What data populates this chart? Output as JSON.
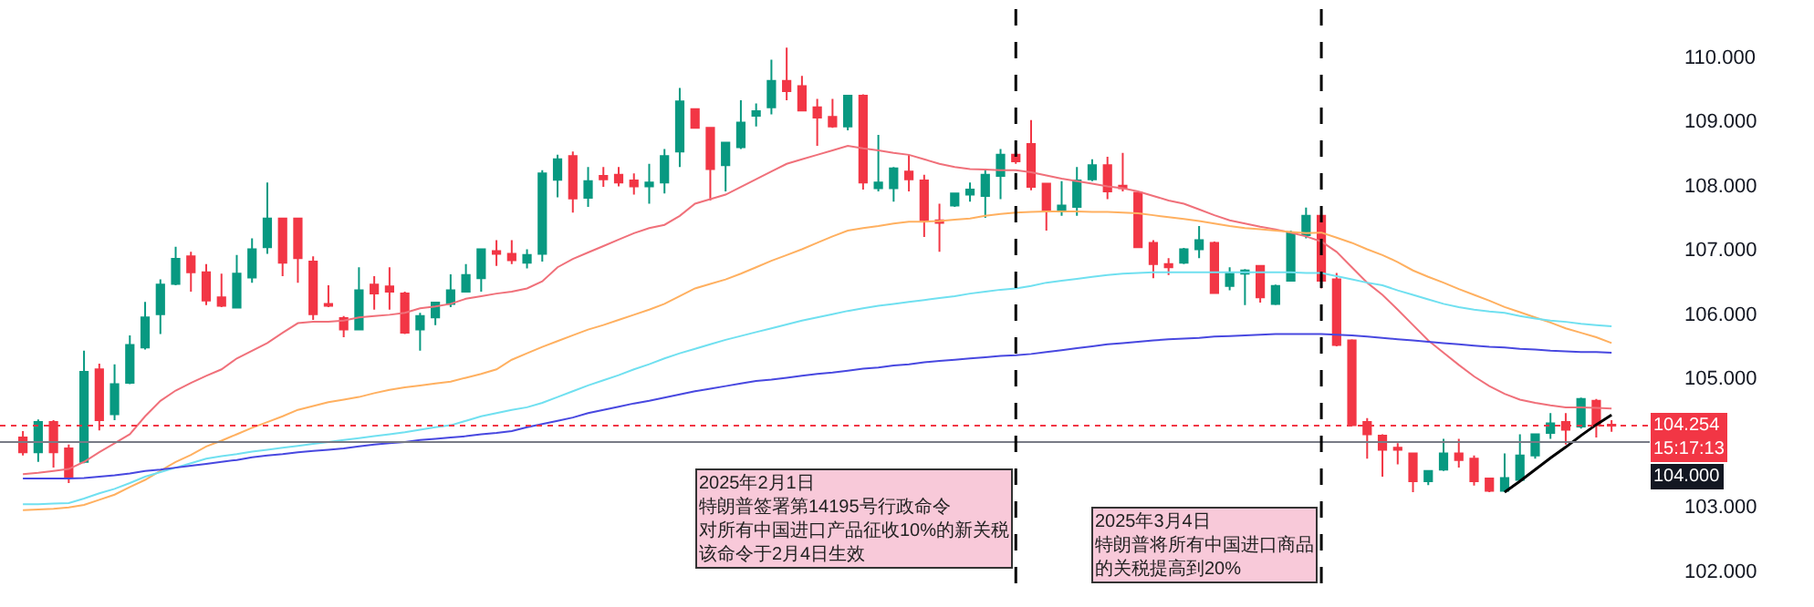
{
  "chart_data": {
    "type": "candlestick",
    "categories": [
      null,
      null,
      null,
      null,
      null,
      null,
      null,
      null,
      null,
      null,
      null,
      null,
      null,
      null,
      null,
      null,
      null,
      null,
      null,
      null,
      null,
      null,
      null,
      null,
      null,
      null,
      null,
      null,
      null,
      null,
      null,
      null,
      null,
      null,
      null,
      null,
      null,
      null,
      null,
      null,
      null,
      null,
      null,
      null,
      null,
      null,
      null,
      null,
      null,
      null,
      null,
      null,
      null,
      null,
      null,
      null,
      null,
      null,
      null,
      null,
      null,
      null,
      null,
      null,
      null,
      null,
      null,
      null,
      null,
      null,
      null,
      null,
      null,
      null,
      null,
      null,
      null,
      null,
      null,
      null,
      null,
      null,
      null,
      null,
      null,
      null,
      null,
      null,
      null,
      null,
      null,
      null,
      null,
      null,
      null,
      null,
      null,
      null,
      null,
      null,
      null,
      null,
      null,
      null,
      null
    ],
    "ohlc": [
      [
        104.07,
        104.17,
        103.79,
        103.84
      ],
      [
        103.84,
        104.35,
        103.69,
        104.31
      ],
      [
        104.31,
        104.34,
        103.6,
        103.84
      ],
      [
        103.9,
        103.96,
        103.36,
        103.46
      ],
      [
        103.69,
        105.42,
        103.67,
        105.09
      ],
      [
        105.13,
        105.22,
        104.18,
        104.34
      ],
      [
        104.43,
        105.21,
        104.34,
        104.9
      ],
      [
        104.92,
        105.66,
        104.9,
        105.51
      ],
      [
        105.47,
        106.18,
        105.44,
        105.94
      ],
      [
        105.99,
        106.53,
        105.68,
        106.45
      ],
      [
        106.46,
        107.04,
        106.44,
        106.85
      ],
      [
        106.89,
        106.96,
        106.34,
        106.64
      ],
      [
        106.64,
        106.77,
        106.13,
        106.2
      ],
      [
        106.25,
        106.62,
        106.1,
        106.12
      ],
      [
        106.09,
        106.91,
        106.09,
        106.62
      ],
      [
        106.56,
        107.17,
        106.48,
        107.0
      ],
      [
        107.03,
        108.04,
        106.93,
        107.48
      ],
      [
        107.48,
        107.48,
        106.58,
        106.79
      ],
      [
        107.48,
        107.48,
        106.48,
        106.86
      ],
      [
        106.81,
        106.89,
        105.9,
        105.99
      ],
      [
        106.15,
        106.44,
        106.1,
        106.12
      ],
      [
        105.93,
        105.96,
        105.63,
        105.75
      ],
      [
        105.75,
        106.72,
        105.75,
        106.36
      ],
      [
        106.45,
        106.58,
        106.06,
        106.31
      ],
      [
        106.42,
        106.72,
        106.06,
        106.34
      ],
      [
        106.31,
        106.34,
        105.68,
        105.7
      ],
      [
        105.75,
        106.01,
        105.42,
        105.96
      ],
      [
        105.94,
        106.17,
        105.82,
        106.17
      ],
      [
        106.15,
        106.61,
        106.1,
        106.36
      ],
      [
        106.34,
        106.77,
        106.34,
        106.6
      ],
      [
        106.55,
        107.0,
        106.34,
        107.0
      ],
      [
        106.97,
        107.14,
        106.74,
        106.93
      ],
      [
        106.93,
        107.14,
        106.77,
        106.83
      ],
      [
        106.79,
        107.0,
        106.7,
        106.91
      ],
      [
        106.93,
        108.23,
        106.81,
        108.18
      ],
      [
        108.08,
        108.47,
        107.81,
        108.4
      ],
      [
        108.45,
        108.52,
        107.57,
        107.79
      ],
      [
        107.8,
        108.28,
        107.66,
        108.06
      ],
      [
        108.14,
        108.28,
        107.97,
        108.09
      ],
      [
        108.16,
        108.28,
        107.98,
        108.04
      ],
      [
        108.07,
        108.18,
        107.85,
        107.98
      ],
      [
        107.98,
        108.33,
        107.71,
        108.04
      ],
      [
        108.04,
        108.56,
        107.87,
        108.45
      ],
      [
        108.52,
        109.51,
        108.28,
        109.3
      ],
      [
        109.18,
        109.18,
        108.89,
        108.89
      ],
      [
        108.89,
        108.89,
        107.76,
        108.25
      ],
      [
        108.31,
        108.66,
        107.9,
        108.66
      ],
      [
        108.59,
        109.32,
        108.56,
        108.97
      ],
      [
        109.08,
        109.27,
        108.91,
        109.15
      ],
      [
        109.21,
        109.95,
        109.1,
        109.62
      ],
      [
        109.62,
        110.14,
        109.32,
        109.46
      ],
      [
        109.54,
        109.7,
        109.16,
        109.16
      ],
      [
        109.21,
        109.34,
        108.61,
        109.05
      ],
      [
        109.06,
        109.34,
        108.89,
        108.91
      ],
      [
        108.91,
        109.39,
        108.85,
        109.39
      ],
      [
        109.39,
        109.41,
        107.93,
        108.04
      ],
      [
        107.95,
        108.78,
        107.9,
        108.04
      ],
      [
        107.95,
        108.28,
        107.74,
        108.26
      ],
      [
        108.21,
        108.47,
        107.9,
        108.09
      ],
      [
        108.07,
        108.16,
        107.19,
        107.45
      ],
      [
        107.45,
        107.71,
        106.96,
        107.41
      ],
      [
        107.68,
        107.87,
        107.66,
        107.87
      ],
      [
        107.85,
        108.04,
        107.74,
        107.93
      ],
      [
        107.83,
        108.25,
        107.49,
        108.16
      ],
      [
        108.14,
        108.56,
        107.78,
        108.47
      ],
      [
        108.47,
        108.52,
        108.33,
        108.37
      ],
      [
        108.64,
        109.01,
        107.92,
        107.97
      ],
      [
        108.02,
        108.02,
        107.29,
        107.6
      ],
      [
        107.59,
        108.06,
        107.52,
        107.68
      ],
      [
        107.66,
        108.28,
        107.52,
        108.07
      ],
      [
        108.09,
        108.4,
        108.06,
        108.31
      ],
      [
        108.31,
        108.44,
        107.78,
        107.9
      ],
      [
        107.99,
        108.5,
        107.9,
        107.95
      ],
      [
        107.88,
        107.88,
        107.03,
        107.03
      ],
      [
        107.1,
        107.14,
        106.55,
        106.77
      ],
      [
        106.77,
        106.86,
        106.6,
        106.72
      ],
      [
        106.79,
        107.02,
        106.77,
        107.0
      ],
      [
        107.0,
        107.36,
        106.86,
        107.14
      ],
      [
        107.1,
        107.12,
        106.32,
        106.32
      ],
      [
        106.43,
        106.72,
        106.36,
        106.62
      ],
      [
        106.62,
        106.69,
        106.13,
        106.67
      ],
      [
        106.74,
        106.74,
        106.17,
        106.25
      ],
      [
        106.15,
        106.45,
        106.13,
        106.43
      ],
      [
        106.51,
        107.29,
        106.51,
        107.26
      ],
      [
        107.22,
        107.65,
        107.17,
        107.52
      ],
      [
        107.52,
        107.52,
        106.39,
        106.51
      ],
      [
        106.53,
        106.63,
        105.49,
        105.51
      ],
      [
        105.58,
        105.6,
        104.26,
        104.26
      ],
      [
        104.31,
        104.37,
        103.74,
        104.12
      ],
      [
        104.1,
        104.12,
        103.46,
        103.88
      ],
      [
        103.91,
        103.98,
        103.65,
        103.88
      ],
      [
        103.82,
        103.82,
        103.22,
        103.39
      ],
      [
        103.39,
        103.55,
        103.33,
        103.55
      ],
      [
        103.57,
        104.05,
        103.55,
        103.82
      ],
      [
        103.82,
        104.05,
        103.6,
        103.72
      ],
      [
        103.74,
        103.79,
        103.32,
        103.39
      ],
      [
        103.43,
        103.43,
        103.22,
        103.24
      ],
      [
        103.24,
        103.82,
        103.22,
        103.44
      ],
      [
        103.41,
        104.12,
        103.39,
        103.79
      ],
      [
        103.79,
        104.12,
        103.74,
        104.12
      ],
      [
        104.14,
        104.45,
        104.05,
        104.29
      ],
      [
        104.31,
        104.45,
        103.96,
        104.19
      ],
      [
        104.24,
        104.69,
        104.21,
        104.67
      ],
      [
        104.64,
        104.67,
        104.07,
        104.26
      ],
      [
        104.27,
        104.34,
        104.16,
        104.254
      ]
    ],
    "series": [
      {
        "type": "line",
        "color": "#f0707a",
        "values": [
          103.5,
          103.52,
          103.55,
          103.58,
          103.69,
          103.84,
          103.98,
          104.12,
          104.4,
          104.64,
          104.8,
          104.92,
          105.03,
          105.13,
          105.3,
          105.42,
          105.54,
          105.7,
          105.85,
          105.87,
          105.87,
          105.89,
          105.94,
          105.96,
          105.98,
          106.01,
          106.08,
          106.11,
          106.15,
          106.23,
          106.27,
          106.31,
          106.34,
          106.39,
          106.5,
          106.72,
          106.85,
          106.95,
          107.05,
          107.15,
          107.25,
          107.33,
          107.38,
          107.52,
          107.71,
          107.78,
          107.85,
          107.97,
          108.09,
          108.21,
          108.33,
          108.4,
          108.47,
          108.54,
          108.61,
          108.57,
          108.54,
          108.5,
          108.47,
          108.4,
          108.33,
          108.28,
          108.25,
          108.24,
          108.23,
          108.23,
          108.2,
          108.15,
          108.1,
          108.06,
          108.02,
          107.98,
          107.95,
          107.9,
          107.83,
          107.76,
          107.71,
          107.62,
          107.53,
          107.45,
          107.4,
          107.35,
          107.31,
          107.26,
          107.2,
          107.12,
          106.96,
          106.72,
          106.48,
          106.29,
          106.06,
          105.82,
          105.58,
          105.39,
          105.2,
          105.02,
          104.87,
          104.75,
          104.66,
          104.61,
          104.57,
          104.54,
          104.54,
          104.53,
          104.52
        ]
      },
      {
        "type": "line",
        "color": "#ffb060",
        "values": [
          102.94,
          102.95,
          102.96,
          102.98,
          103.02,
          103.1,
          103.18,
          103.3,
          103.41,
          103.55,
          103.69,
          103.8,
          103.93,
          104.02,
          104.12,
          104.22,
          104.31,
          104.4,
          104.5,
          104.56,
          104.62,
          104.66,
          104.7,
          104.76,
          104.81,
          104.85,
          104.88,
          104.91,
          104.94,
          105.0,
          105.06,
          105.13,
          105.28,
          105.38,
          105.48,
          105.57,
          105.66,
          105.75,
          105.82,
          105.9,
          105.98,
          106.06,
          106.15,
          106.27,
          106.39,
          106.46,
          106.53,
          106.62,
          106.72,
          106.82,
          106.91,
          107.0,
          107.1,
          107.2,
          107.29,
          107.33,
          107.36,
          107.4,
          107.43,
          107.43,
          107.44,
          107.46,
          107.48,
          107.52,
          107.55,
          107.57,
          107.58,
          107.59,
          107.59,
          107.59,
          107.58,
          107.58,
          107.57,
          107.56,
          107.53,
          107.5,
          107.47,
          107.44,
          107.4,
          107.36,
          107.33,
          107.31,
          107.29,
          107.27,
          107.25,
          107.26,
          107.18,
          107.1,
          107.0,
          106.91,
          106.8,
          106.67,
          106.57,
          106.48,
          106.38,
          106.29,
          106.2,
          106.1,
          106.02,
          105.94,
          105.86,
          105.77,
          105.7,
          105.63,
          105.54
        ]
      },
      {
        "type": "line",
        "color": "#70e0f0",
        "values": [
          103.03,
          103.03,
          103.04,
          103.05,
          103.12,
          103.2,
          103.27,
          103.36,
          103.46,
          103.53,
          103.6,
          103.67,
          103.74,
          103.78,
          103.81,
          103.85,
          103.88,
          103.91,
          103.94,
          103.97,
          104.0,
          104.03,
          104.06,
          104.09,
          104.12,
          104.15,
          104.19,
          104.23,
          104.26,
          104.33,
          104.4,
          104.45,
          104.5,
          104.54,
          104.61,
          104.7,
          104.79,
          104.88,
          104.96,
          105.04,
          105.13,
          105.21,
          105.3,
          105.38,
          105.45,
          105.52,
          105.59,
          105.65,
          105.71,
          105.77,
          105.83,
          105.89,
          105.94,
          105.99,
          106.04,
          106.08,
          106.12,
          106.15,
          106.18,
          106.21,
          106.24,
          106.27,
          106.31,
          106.34,
          106.37,
          106.39,
          106.43,
          106.48,
          106.51,
          106.54,
          106.57,
          106.6,
          106.62,
          106.63,
          106.64,
          106.64,
          106.64,
          106.64,
          106.64,
          106.64,
          106.64,
          106.64,
          106.64,
          106.64,
          106.63,
          106.63,
          106.58,
          106.53,
          106.48,
          106.44,
          106.36,
          106.29,
          106.22,
          106.15,
          106.1,
          106.06,
          106.03,
          106.01,
          105.96,
          105.92,
          105.89,
          105.87,
          105.84,
          105.82,
          105.8
        ]
      },
      {
        "type": "line",
        "color": "#4848e0",
        "values": [
          103.43,
          103.43,
          103.43,
          103.43,
          103.44,
          103.46,
          103.48,
          103.51,
          103.55,
          103.57,
          103.6,
          103.63,
          103.66,
          103.69,
          103.72,
          103.76,
          103.79,
          103.81,
          103.84,
          103.86,
          103.88,
          103.9,
          103.93,
          103.96,
          103.98,
          104.0,
          104.03,
          104.05,
          104.07,
          104.09,
          104.12,
          104.14,
          104.17,
          104.23,
          104.28,
          104.33,
          104.38,
          104.45,
          104.5,
          104.55,
          104.6,
          104.64,
          104.69,
          104.74,
          104.79,
          104.83,
          104.87,
          104.91,
          104.95,
          104.97,
          105.0,
          105.03,
          105.06,
          105.08,
          105.11,
          105.14,
          105.16,
          105.19,
          105.21,
          105.24,
          105.26,
          105.28,
          105.3,
          105.32,
          105.34,
          105.35,
          105.37,
          105.4,
          105.43,
          105.46,
          105.49,
          105.52,
          105.54,
          105.56,
          105.58,
          105.6,
          105.61,
          105.62,
          105.64,
          105.65,
          105.66,
          105.67,
          105.68,
          105.68,
          105.68,
          105.68,
          105.67,
          105.66,
          105.64,
          105.62,
          105.6,
          105.58,
          105.56,
          105.54,
          105.52,
          105.5,
          105.48,
          105.47,
          105.45,
          105.44,
          105.42,
          105.41,
          105.4,
          105.4,
          105.39
        ]
      },
      {
        "type": "line",
        "color": "#000000",
        "values": [
          null,
          null,
          null,
          null,
          null,
          null,
          null,
          null,
          null,
          null,
          null,
          null,
          null,
          null,
          null,
          null,
          null,
          null,
          null,
          null,
          null,
          null,
          null,
          null,
          null,
          null,
          null,
          null,
          null,
          null,
          null,
          null,
          null,
          null,
          null,
          null,
          null,
          null,
          null,
          null,
          null,
          null,
          null,
          null,
          null,
          null,
          null,
          null,
          null,
          null,
          null,
          null,
          null,
          null,
          null,
          null,
          null,
          null,
          null,
          null,
          null,
          null,
          null,
          null,
          null,
          null,
          null,
          null,
          null,
          null,
          null,
          null,
          null,
          null,
          null,
          null,
          null,
          null,
          null,
          null,
          null,
          null,
          null,
          null,
          null,
          null,
          null,
          null,
          null,
          null,
          null,
          null,
          null,
          null,
          null,
          null,
          null,
          103.22,
          103.39,
          103.57,
          103.75,
          103.92,
          104.1,
          104.27,
          104.42
        ]
      }
    ],
    "ylim": [
      101.8,
      110.88
    ],
    "yticks": [
      {
        "value": 102,
        "label": "102.000"
      },
      {
        "value": 103,
        "label": "103.000"
      },
      {
        "value": 105,
        "label": "105.000"
      },
      {
        "value": 106,
        "label": "106.000"
      },
      {
        "value": 107,
        "label": "107.000"
      },
      {
        "value": 108,
        "label": "108.000"
      },
      {
        "value": 109,
        "label": "109.000"
      },
      {
        "value": 110,
        "label": "110.000"
      }
    ],
    "ref_lines": [
      {
        "axis": "y",
        "value": 104.254,
        "label": "104.254\n15:17:13",
        "color": "#f23645",
        "line_style": "dotted"
      },
      {
        "axis": "y",
        "value": 104,
        "label": "104.000",
        "color": "#787b86",
        "line_style": "solid"
      }
    ],
    "annotations": [
      "2025年2月1日",
      "特朗普签署第14195号行政命令",
      "对所有中国进口产品征收10%的新关税",
      "该命令于2月4日生效",
      "2025年3月4日",
      "特朗普将所有中国进口商品",
      "的关税提高到20%"
    ]
  }
}
